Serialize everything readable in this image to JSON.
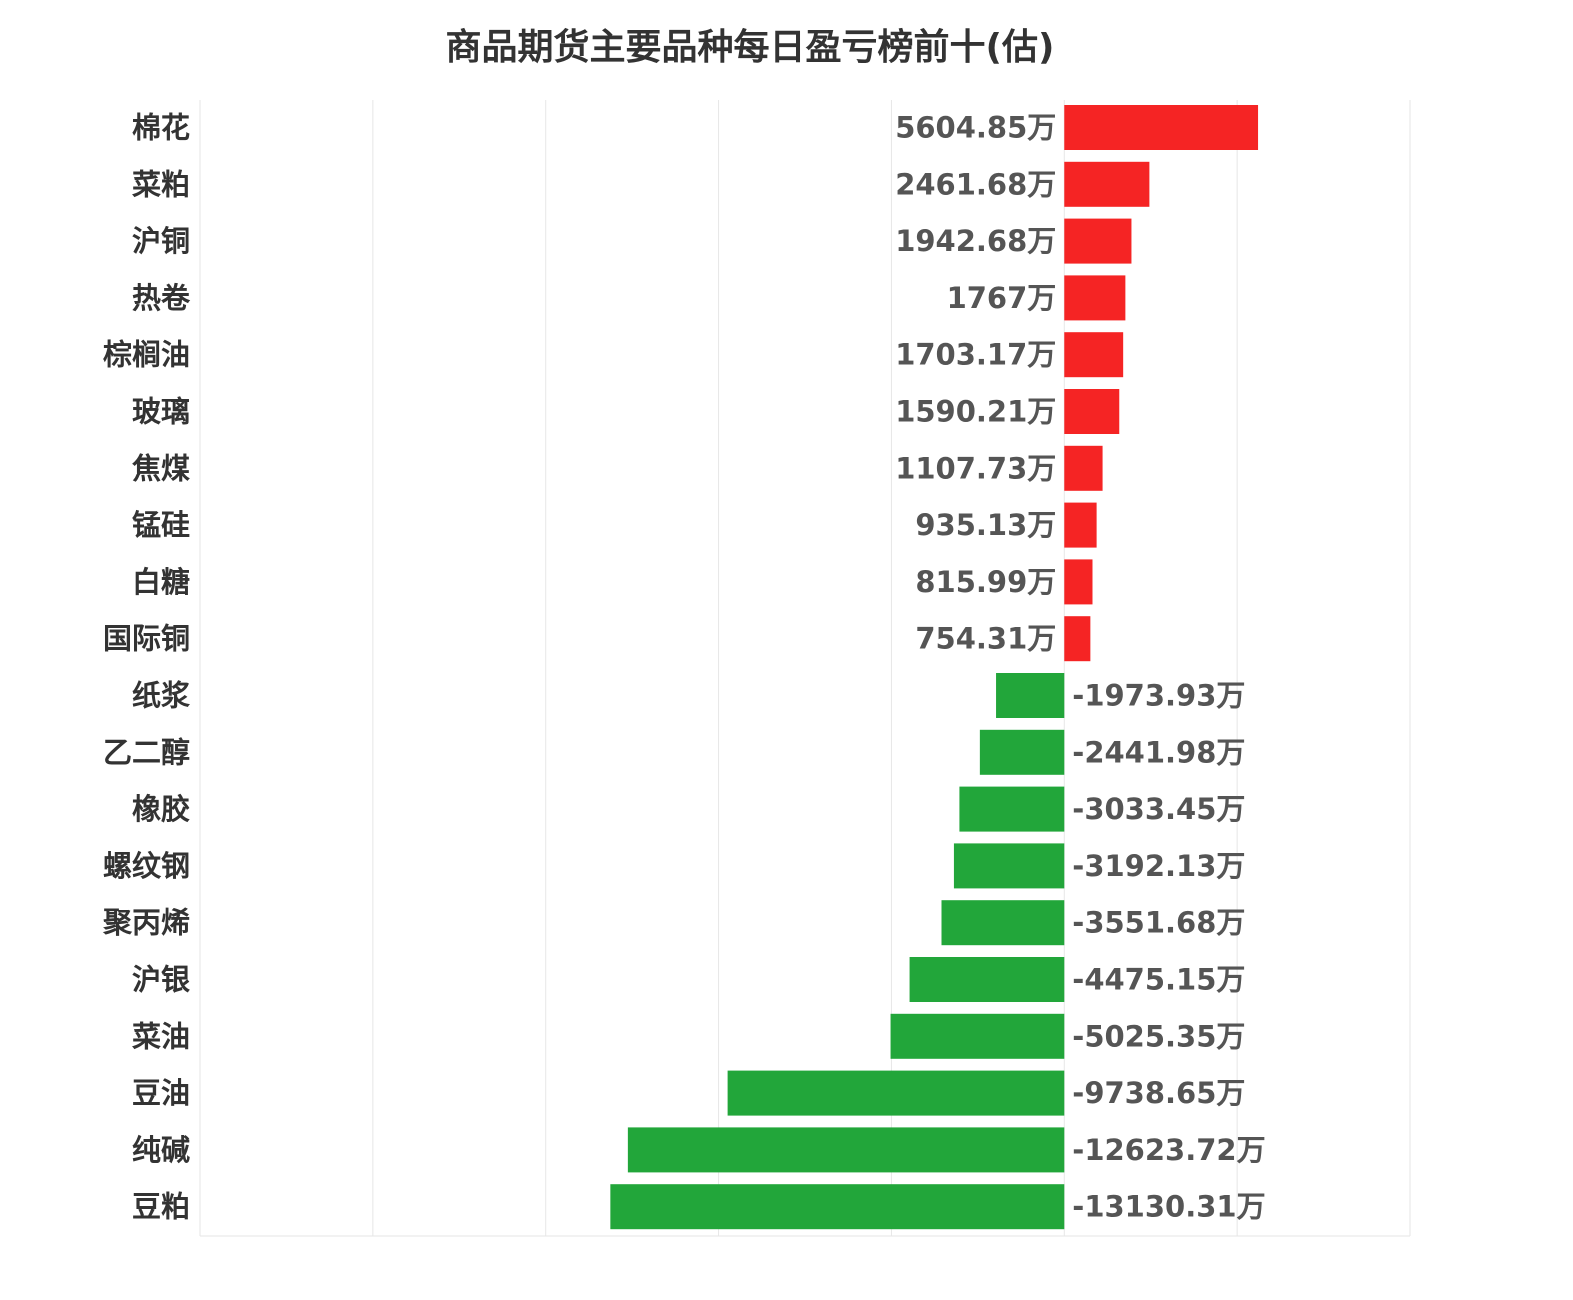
{
  "chart_data": {
    "type": "bar",
    "orientation": "horizontal",
    "title": "商品期货主要品种每日盈亏榜前十(估)",
    "unit": "万",
    "xlim": [
      -25000,
      10000
    ],
    "grid": true,
    "categories": [
      "棉花",
      "菜粕",
      "沪铜",
      "热卷",
      "棕榈油",
      "玻璃",
      "焦煤",
      "锰硅",
      "白糖",
      "国际铜",
      "纸浆",
      "乙二醇",
      "橡胶",
      "螺纹钢",
      "聚丙烯",
      "沪银",
      "菜油",
      "豆油",
      "纯碱",
      "豆粕"
    ],
    "values": [
      5604.85,
      2461.68,
      1942.68,
      1767,
      1703.17,
      1590.21,
      1107.73,
      935.13,
      815.99,
      754.31,
      -1973.93,
      -2441.98,
      -3033.45,
      -3192.13,
      -3551.68,
      -4475.15,
      -5025.35,
      -9738.65,
      -12623.72,
      -13130.31
    ],
    "value_labels": [
      "5604.85万",
      "2461.68万",
      "1942.68万",
      "1767万",
      "1703.17万",
      "1590.21万",
      "1107.73万",
      "935.13万",
      "815.99万",
      "754.31万",
      "-1973.93万",
      "-2441.98万",
      "-3033.45万",
      "-3192.13万",
      "-3551.68万",
      "-4475.15万",
      "-5025.35万",
      "-9738.65万",
      "-12623.72万",
      "-13130.31万"
    ],
    "colors": {
      "positive": "#f52424",
      "negative": "#22a63a",
      "grid": "#e6e6e6"
    }
  }
}
